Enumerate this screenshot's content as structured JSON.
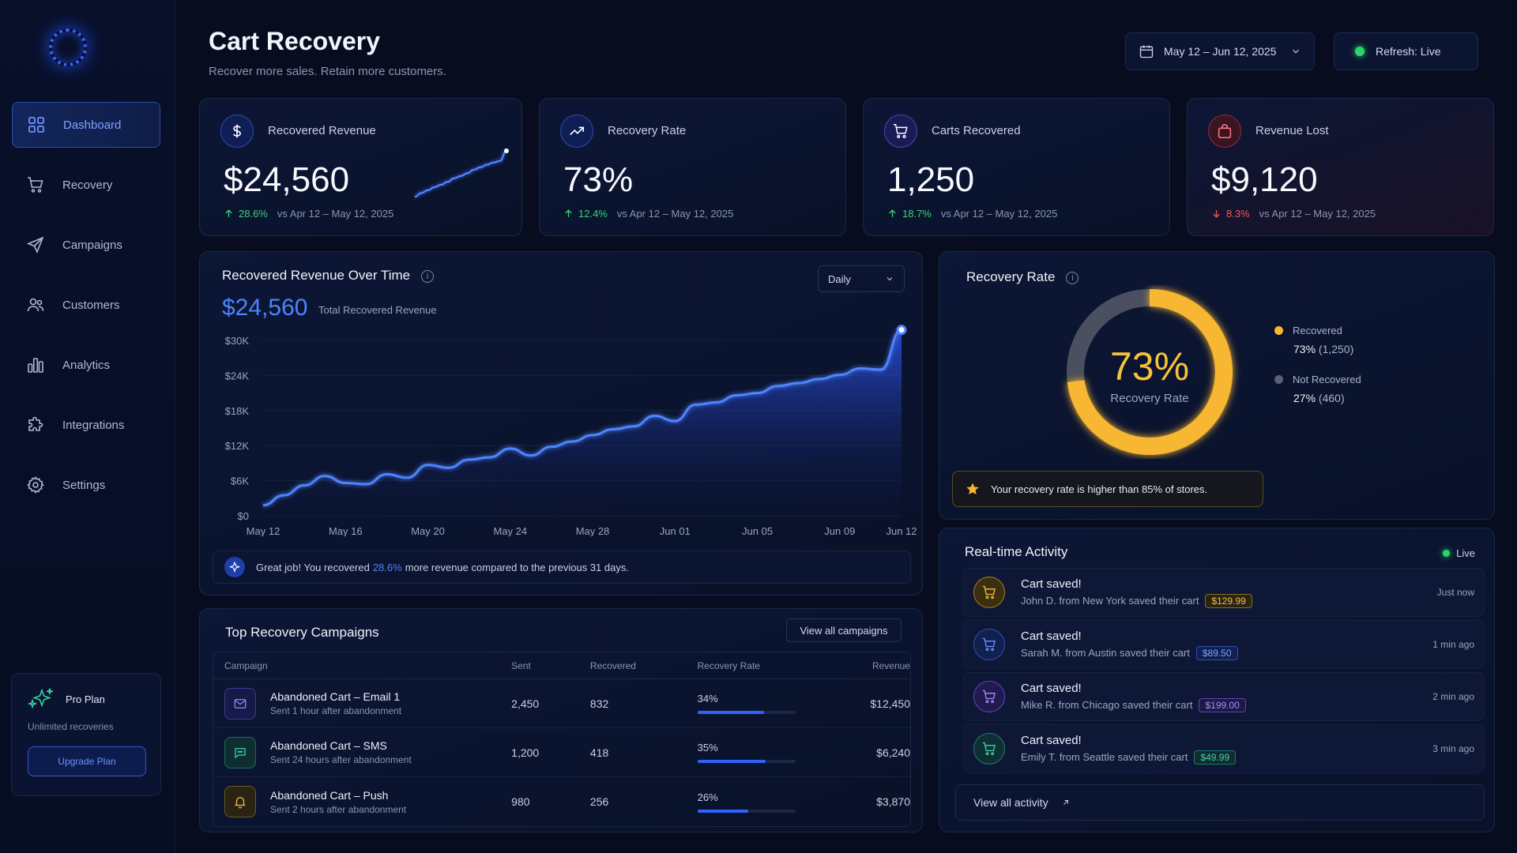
{
  "sidebar": {
    "items": [
      {
        "label": "Dashboard",
        "icon": "grid-icon"
      },
      {
        "label": "Recovery",
        "icon": "cart-icon"
      },
      {
        "label": "Campaigns",
        "icon": "send-icon"
      },
      {
        "label": "Customers",
        "icon": "users-icon"
      },
      {
        "label": "Analytics",
        "icon": "bar-chart-icon"
      },
      {
        "label": "Integrations",
        "icon": "puzzle-icon"
      },
      {
        "label": "Settings",
        "icon": "gear-icon"
      }
    ],
    "plan": {
      "name": "Pro Plan",
      "sub": "Unlimited recoveries",
      "button": "Upgrade Plan"
    }
  },
  "header": {
    "title": "Cart Recovery",
    "subtitle": "Recover more sales. Retain more customers.",
    "date_range": "May 12 – Jun 12, 2025",
    "refresh": "Refresh: Live"
  },
  "kpis": [
    {
      "label": "Recovered Revenue",
      "value": "$24,560",
      "delta": "28.6%",
      "direction": "up",
      "vs": "vs Apr 12 – May 12, 2025",
      "icon": "dollar-icon"
    },
    {
      "label": "Recovery Rate",
      "value": "73%",
      "delta": "12.4%",
      "direction": "up",
      "vs": "vs Apr 12 – May 12, 2025",
      "icon": "trend-up-icon"
    },
    {
      "label": "Carts Recovered",
      "value": "1,250",
      "delta": "18.7%",
      "direction": "up",
      "vs": "vs Apr 12 – May 12, 2025",
      "icon": "cart-icon"
    },
    {
      "label": "Revenue Lost",
      "value": "$9,120",
      "delta": "8.3%",
      "direction": "down",
      "vs": "vs Apr 12 – May 12, 2025",
      "icon": "bag-icon"
    }
  ],
  "revenue_chart": {
    "title": "Recovered Revenue Over Time",
    "granularity": "Daily",
    "total": "$24,560",
    "total_label": "Total Recovered Revenue",
    "insight_pre": "Great job! You recovered",
    "insight_highlight": "28.6%",
    "insight_post": "more revenue compared to the previous 31 days."
  },
  "chart_data": {
    "type": "area",
    "ylim": [
      0,
      30000
    ],
    "y_ticks": [
      "$0",
      "$6K",
      "$12K",
      "$18K",
      "$24K",
      "$30K"
    ],
    "x_ticks": [
      "May 12",
      "May 16",
      "May 20",
      "May 24",
      "May 28",
      "Jun 01",
      "Jun 05",
      "Jun 09",
      "Jun 12"
    ],
    "x": [
      "May 12",
      "May 13",
      "May 14",
      "May 15",
      "May 16",
      "May 17",
      "May 18",
      "May 19",
      "May 20",
      "May 21",
      "May 22",
      "May 23",
      "May 24",
      "May 25",
      "May 26",
      "May 27",
      "May 28",
      "May 29",
      "May 30",
      "May 31",
      "Jun 01",
      "Jun 02",
      "Jun 03",
      "Jun 04",
      "Jun 05",
      "Jun 06",
      "Jun 07",
      "Jun 08",
      "Jun 09",
      "Jun 10",
      "Jun 11",
      "Jun 12"
    ],
    "values": [
      1800,
      3500,
      5200,
      6800,
      5600,
      5400,
      7100,
      6500,
      8700,
      8200,
      9600,
      10000,
      11500,
      10300,
      11800,
      12700,
      13800,
      14800,
      15300,
      17100,
      16200,
      19000,
      19400,
      20600,
      21000,
      22200,
      22700,
      23400,
      24100,
      25200,
      25000,
      31800
    ],
    "sparkline": [
      1800,
      4200,
      6000,
      8000,
      9600,
      11500,
      13800,
      15300,
      17100,
      19400,
      21000,
      22700,
      24100,
      25200,
      31800
    ]
  },
  "recovery_rate": {
    "title": "Recovery Rate",
    "value": "73%",
    "label": "Recovery Rate",
    "recovered_pct": 73,
    "legend": [
      {
        "label": "Recovered",
        "pct": "73%",
        "count": "(1,250)",
        "color": "#f7b731"
      },
      {
        "label": "Not Recovered",
        "pct": "27%",
        "count": "(460)",
        "color": "#5b6172"
      }
    ],
    "note": "Your recovery rate is higher than 85% of stores."
  },
  "campaigns": {
    "title": "Top Recovery Campaigns",
    "view_all": "View all campaigns",
    "columns": [
      "Campaign",
      "Sent",
      "Recovered",
      "Recovery Rate",
      "Revenue"
    ],
    "rows": [
      {
        "name": "Abandoned Cart – Email 1",
        "sub": "Sent 1 hour after abandonment",
        "sent": "2,450",
        "recovered": "832",
        "rate": "34%",
        "rate_value": 0.34,
        "revenue": "$12,450",
        "icon": "mail-icon",
        "color": "#6a6cf0"
      },
      {
        "name": "Abandoned Cart – SMS",
        "sub": "Sent 24 hours after abandonment",
        "sent": "1,200",
        "recovered": "418",
        "rate": "35%",
        "rate_value": 0.35,
        "revenue": "$6,240",
        "icon": "chat-icon",
        "color": "#2fc2a8"
      },
      {
        "name": "Abandoned Cart – Push",
        "sub": "Sent 2 hours after abandonment",
        "sent": "980",
        "recovered": "256",
        "rate": "26%",
        "rate_value": 0.26,
        "revenue": "$3,870",
        "icon": "bell-icon",
        "color": "#e6b93a"
      }
    ]
  },
  "activity": {
    "title": "Real-time Activity",
    "live": "Live",
    "view_all": "View all activity",
    "items": [
      {
        "title": "Cart saved!",
        "desc": "John D. from New York saved their cart",
        "price": "$129.99",
        "time": "Just now",
        "color": "#e6b93a"
      },
      {
        "title": "Cart saved!",
        "desc": "Sarah M. from Austin saved their cart",
        "price": "$89.50",
        "time": "1 min ago",
        "color": "#4d84ff"
      },
      {
        "title": "Cart saved!",
        "desc": "Mike R. from Chicago saved their cart",
        "price": "$199.00",
        "time": "2 min ago",
        "color": "#8b6cf0"
      },
      {
        "title": "Cart saved!",
        "desc": "Emily T. from Seattle saved their cart",
        "price": "$49.99",
        "time": "3 min ago",
        "color": "#2fc2a8"
      }
    ]
  }
}
